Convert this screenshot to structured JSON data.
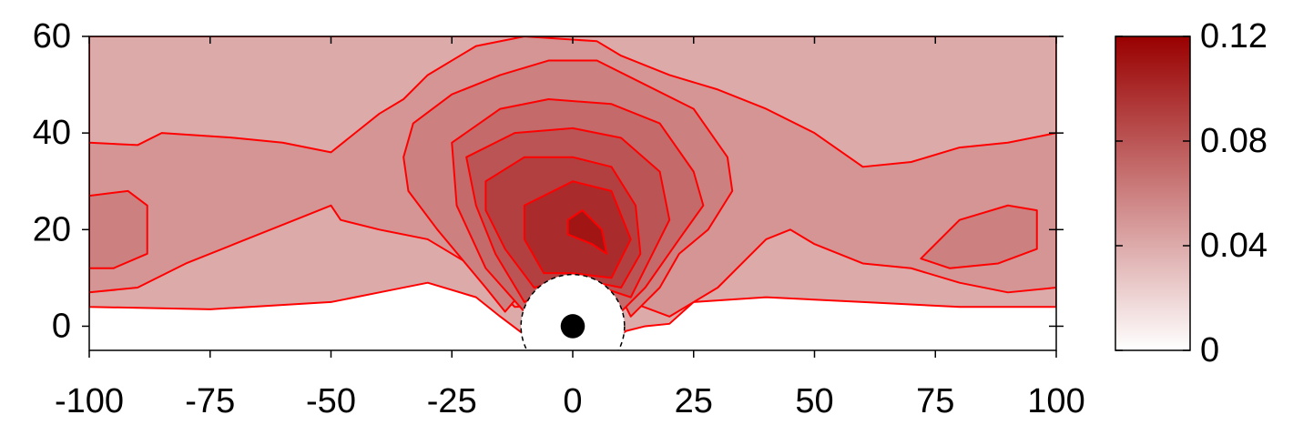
{
  "chart_data": {
    "type": "contour",
    "xlim": [
      -100,
      100
    ],
    "ylim": [
      -5,
      60
    ],
    "xticks": [
      -100,
      -75,
      -50,
      -25,
      0,
      25,
      50,
      75,
      100
    ],
    "yticks": [
      0,
      20,
      40,
      60
    ],
    "clim": [
      0,
      0.12
    ],
    "cticks": [
      0,
      0.04,
      0.08,
      0.12
    ],
    "colormap": [
      "#ffffff",
      "#990000"
    ],
    "line_color": "#ff0000",
    "obstacle": {
      "x": 0,
      "y": 0,
      "r": 10.7,
      "core_r": 2.5
    },
    "contours": [
      {
        "level": 0.04,
        "x": [
          -100,
          -75,
          -50,
          -40,
          -30,
          -20,
          -15,
          -11,
          -7,
          0,
          7,
          11,
          15,
          20,
          25,
          40,
          60,
          80,
          100,
          100,
          -100
        ],
        "y": [
          4,
          3.5,
          5,
          7,
          9,
          6,
          2,
          -1,
          -4,
          -5,
          -4,
          -1,
          0,
          0.5,
          5,
          6,
          5,
          4,
          4,
          60,
          60
        ]
      },
      {
        "level": 0.05,
        "x": [
          -100,
          -90,
          -85,
          -70,
          -60,
          -50,
          -45,
          -40,
          -35,
          -30,
          -20,
          -10,
          5,
          10,
          20,
          30,
          40,
          50,
          60,
          70,
          80,
          90,
          100,
          100,
          90,
          80,
          70,
          60,
          50,
          45,
          40,
          35,
          30,
          25,
          20,
          12,
          -12,
          -20,
          -30,
          -40,
          -48,
          -50,
          -55,
          -70,
          -80,
          -90,
          -100
        ],
        "y": [
          38,
          37.5,
          40,
          39,
          38,
          36,
          40,
          44,
          47,
          52,
          58,
          60,
          59,
          56,
          52,
          49,
          45,
          40,
          33,
          34,
          37,
          38,
          40,
          8,
          7,
          9,
          12,
          13,
          17,
          20,
          18,
          13,
          8,
          5,
          2,
          5,
          4,
          12,
          18,
          20,
          22,
          25,
          23,
          17,
          13,
          8,
          7
        ]
      },
      {
        "level": 0.06,
        "x": [
          -100,
          -92,
          -88,
          -88,
          -95,
          -100
        ],
        "y": [
          27,
          28,
          25,
          15,
          12,
          12
        ]
      },
      {
        "level": 0.06,
        "x": [
          72,
          80,
          90,
          96,
          96,
          88,
          78
        ],
        "y": [
          14,
          22,
          25,
          24,
          16,
          13,
          12
        ]
      },
      {
        "level": 0.06,
        "x": [
          -35,
          -33,
          -25,
          -15,
          -5,
          5,
          15,
          25,
          32,
          33,
          28,
          22,
          18,
          12,
          8,
          -8,
          -14,
          -18,
          -28,
          -34
        ],
        "y": [
          35,
          42,
          48,
          52,
          55,
          55,
          50,
          45,
          35,
          28,
          20,
          15,
          8,
          2,
          10,
          10,
          3,
          8,
          20,
          28
        ]
      },
      {
        "level": 0.07,
        "x": [
          -25,
          -15,
          -5,
          8,
          18,
          25,
          27,
          22,
          15,
          10,
          0,
          -10,
          -18,
          -24
        ],
        "y": [
          38,
          45,
          47,
          46,
          42,
          32,
          25,
          18,
          8,
          3,
          10,
          3,
          12,
          25
        ]
      },
      {
        "level": 0.08,
        "x": [
          -22,
          -12,
          0,
          10,
          18,
          20,
          16,
          12,
          0,
          -10,
          -16,
          -20
        ],
        "y": [
          35,
          40,
          41,
          39,
          32,
          22,
          14,
          6,
          10,
          5,
          15,
          25
        ]
      },
      {
        "level": 0.09,
        "x": [
          -18,
          -10,
          0,
          8,
          13,
          14,
          10,
          0,
          -8,
          -14,
          -18
        ],
        "y": [
          30,
          35,
          35,
          33,
          25,
          15,
          8,
          10,
          8,
          16,
          24
        ]
      },
      {
        "level": 0.1,
        "x": [
          -10,
          0,
          8,
          12,
          8,
          0,
          -6,
          -10
        ],
        "y": [
          25,
          30,
          28,
          18,
          10,
          11,
          11,
          18
        ]
      },
      {
        "level": 0.11,
        "x": [
          -1,
          2,
          6,
          7,
          4,
          -1
        ],
        "y": [
          22,
          24,
          20,
          15,
          17,
          19
        ]
      }
    ]
  }
}
